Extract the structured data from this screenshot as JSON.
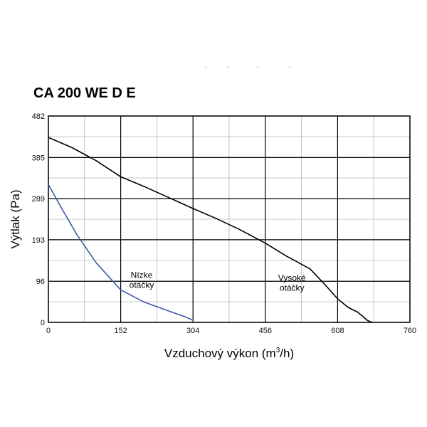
{
  "header_fragments": [
    "ˎ",
    "ˏ",
    "ˎ",
    "ˏ"
  ],
  "chart_data": {
    "type": "line",
    "title": "CA 200 WE D E",
    "xlabel": "Vzduchový výkon (m",
    "xlabel_sup": "3",
    "xlabel_tail": "/h)",
    "ylabel": "Výtlak (Pa)",
    "xlim": [
      0,
      760
    ],
    "ylim": [
      0,
      482
    ],
    "x_ticks": [
      0,
      152,
      304,
      456,
      608,
      760
    ],
    "y_ticks": [
      0,
      96,
      193,
      289,
      385,
      482
    ],
    "x_minor_step": 76,
    "y_minor_step": 48.2,
    "grid": true,
    "series": [
      {
        "name": "Vysoké otáčky",
        "color": "#000000",
        "x": [
          0,
          50,
          100,
          152,
          200,
          250,
          304,
          350,
          400,
          456,
          500,
          550,
          580,
          608,
          630,
          650,
          660,
          670,
          680
        ],
        "y": [
          432,
          408,
          378,
          340,
          318,
          293,
          266,
          244,
          218,
          185,
          155,
          125,
          90,
          55,
          35,
          24,
          15,
          5,
          0
        ]
      },
      {
        "name": "Nízke otáčky",
        "color": "#3e5ba8",
        "x": [
          0,
          30,
          60,
          100,
          152,
          200,
          250,
          290,
          304
        ],
        "y": [
          322,
          262,
          205,
          140,
          76,
          48,
          28,
          12,
          5
        ]
      }
    ],
    "annotations": [
      {
        "text_lines": [
          "Nízke",
          "otáčky"
        ],
        "x": 196,
        "y": 104
      },
      {
        "text_lines": [
          "Vysoké",
          "otáčky"
        ],
        "x": 512,
        "y": 97
      }
    ]
  }
}
